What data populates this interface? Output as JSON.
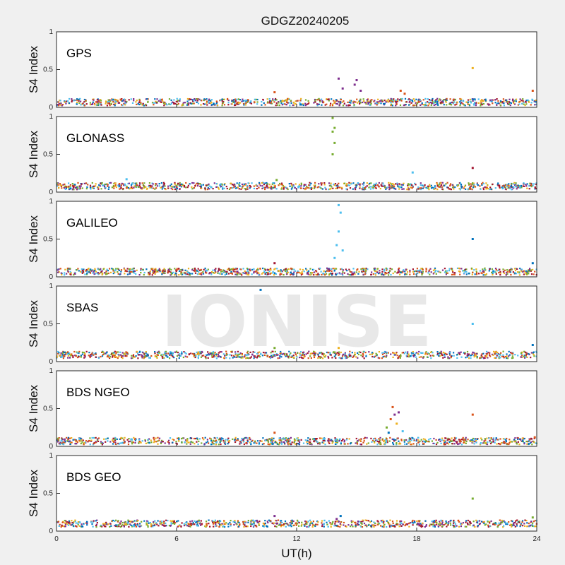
{
  "chart_data": {
    "type": "scatter",
    "title": "GDGZ20240205",
    "xlabel": "UT(h)",
    "ylabel": "S4 Index",
    "xlim": [
      0,
      24
    ],
    "ylim": [
      0,
      1
    ],
    "x_ticks": [
      "0",
      "6",
      "12",
      "18",
      "24"
    ],
    "y_ticks": [
      "0",
      "0.5",
      "1"
    ],
    "grid": false,
    "watermark": "IONISE",
    "colors": [
      "#0072bd",
      "#d95319",
      "#edb120",
      "#7e2f8e",
      "#77ac30",
      "#4dbeee",
      "#a2142f"
    ],
    "panels": [
      {
        "label": "GPS",
        "baseline": 0.07,
        "events": [
          {
            "x": 14.1,
            "y": 0.38,
            "c": 3
          },
          {
            "x": 14.3,
            "y": 0.25,
            "c": 3
          },
          {
            "x": 14.9,
            "y": 0.3,
            "c": 3
          },
          {
            "x": 15.0,
            "y": 0.36,
            "c": 3
          },
          {
            "x": 15.2,
            "y": 0.22,
            "c": 3
          },
          {
            "x": 17.2,
            "y": 0.22,
            "c": 1
          },
          {
            "x": 17.4,
            "y": 0.18,
            "c": 1
          },
          {
            "x": 20.8,
            "y": 0.52,
            "c": 2
          },
          {
            "x": 10.9,
            "y": 0.2,
            "c": 1
          },
          {
            "x": 23.8,
            "y": 0.22,
            "c": 1
          }
        ]
      },
      {
        "label": "GLONASS",
        "baseline": 0.08,
        "events": [
          {
            "x": 13.8,
            "y": 0.98,
            "c": 4
          },
          {
            "x": 13.8,
            "y": 0.8,
            "c": 4
          },
          {
            "x": 13.9,
            "y": 0.65,
            "c": 4
          },
          {
            "x": 13.8,
            "y": 0.5,
            "c": 4
          },
          {
            "x": 13.9,
            "y": 0.85,
            "c": 4
          },
          {
            "x": 17.8,
            "y": 0.26,
            "c": 5
          },
          {
            "x": 20.8,
            "y": 0.32,
            "c": 6
          },
          {
            "x": 3.5,
            "y": 0.17,
            "c": 5
          },
          {
            "x": 11.0,
            "y": 0.16,
            "c": 4
          }
        ]
      },
      {
        "label": "GALILEO",
        "baseline": 0.07,
        "events": [
          {
            "x": 14.1,
            "y": 0.95,
            "c": 5
          },
          {
            "x": 14.2,
            "y": 0.85,
            "c": 5
          },
          {
            "x": 14.1,
            "y": 0.6,
            "c": 5
          },
          {
            "x": 14.0,
            "y": 0.42,
            "c": 5
          },
          {
            "x": 14.3,
            "y": 0.35,
            "c": 5
          },
          {
            "x": 13.9,
            "y": 0.25,
            "c": 5
          },
          {
            "x": 20.8,
            "y": 0.5,
            "c": 0
          },
          {
            "x": 10.9,
            "y": 0.18,
            "c": 6
          },
          {
            "x": 23.8,
            "y": 0.18,
            "c": 0
          }
        ]
      },
      {
        "label": "SBAS",
        "baseline": 0.09,
        "events": [
          {
            "x": 10.2,
            "y": 0.95,
            "c": 0
          },
          {
            "x": 20.8,
            "y": 0.5,
            "c": 5
          },
          {
            "x": 14.1,
            "y": 0.18,
            "c": 2
          },
          {
            "x": 10.9,
            "y": 0.18,
            "c": 4
          },
          {
            "x": 23.8,
            "y": 0.22,
            "c": 0
          }
        ]
      },
      {
        "label": "BDS NGEO",
        "baseline": 0.07,
        "events": [
          {
            "x": 16.8,
            "y": 0.52,
            "c": 1
          },
          {
            "x": 16.9,
            "y": 0.42,
            "c": 3
          },
          {
            "x": 16.7,
            "y": 0.36,
            "c": 1
          },
          {
            "x": 17.1,
            "y": 0.45,
            "c": 3
          },
          {
            "x": 17.0,
            "y": 0.3,
            "c": 2
          },
          {
            "x": 16.5,
            "y": 0.25,
            "c": 4
          },
          {
            "x": 17.3,
            "y": 0.2,
            "c": 5
          },
          {
            "x": 16.6,
            "y": 0.18,
            "c": 0
          },
          {
            "x": 20.8,
            "y": 0.42,
            "c": 1
          },
          {
            "x": 10.9,
            "y": 0.18,
            "c": 1
          },
          {
            "x": 23.9,
            "y": 0.12,
            "c": 1
          }
        ]
      },
      {
        "label": "BDS GEO",
        "baseline": 0.1,
        "events": [
          {
            "x": 20.8,
            "y": 0.43,
            "c": 4
          },
          {
            "x": 14.2,
            "y": 0.2,
            "c": 0
          },
          {
            "x": 10.9,
            "y": 0.2,
            "c": 3
          },
          {
            "x": 23.8,
            "y": 0.18,
            "c": 4
          },
          {
            "x": 14.0,
            "y": 0.16,
            "c": 3
          }
        ]
      }
    ]
  }
}
